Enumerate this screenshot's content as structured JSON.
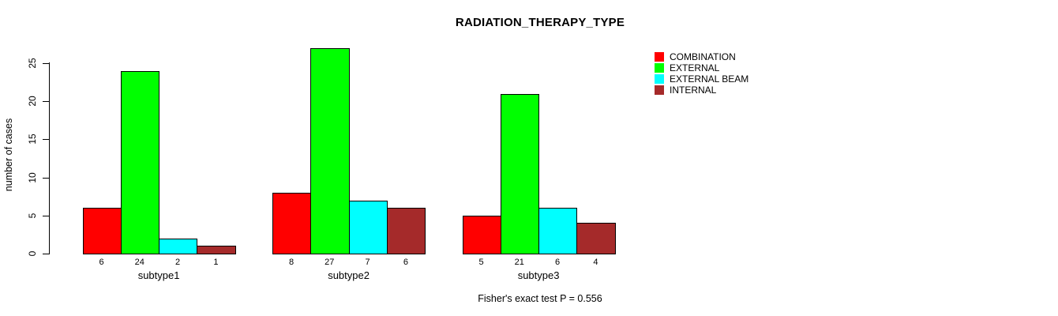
{
  "chart_data": {
    "type": "bar",
    "title": "RADIATION_THERAPY_TYPE",
    "xlabel": "",
    "ylabel": "number of cases",
    "categories": [
      "subtype1",
      "subtype2",
      "subtype3"
    ],
    "series": [
      {
        "name": "COMBINATION",
        "color": "#FF0000",
        "values": [
          6,
          8,
          5
        ]
      },
      {
        "name": "EXTERNAL",
        "color": "#00FF00",
        "values": [
          24,
          27,
          21
        ]
      },
      {
        "name": "EXTERNAL BEAM",
        "color": "#00FFFF",
        "values": [
          2,
          7,
          6
        ]
      },
      {
        "name": "INTERNAL",
        "color": "#A52A2A",
        "values": [
          1,
          6,
          4
        ]
      }
    ],
    "ylim": [
      0,
      27
    ],
    "yticks": [
      0,
      5,
      10,
      15,
      20,
      25
    ],
    "grid": false,
    "bar_borders": true,
    "value_labels_shown": true,
    "legend_position": "top-right",
    "annotation": "Fisher's exact test P = 0.556"
  },
  "colors": {
    "background": "#FFFFFF",
    "axis": "#000000",
    "text": "#000000"
  }
}
